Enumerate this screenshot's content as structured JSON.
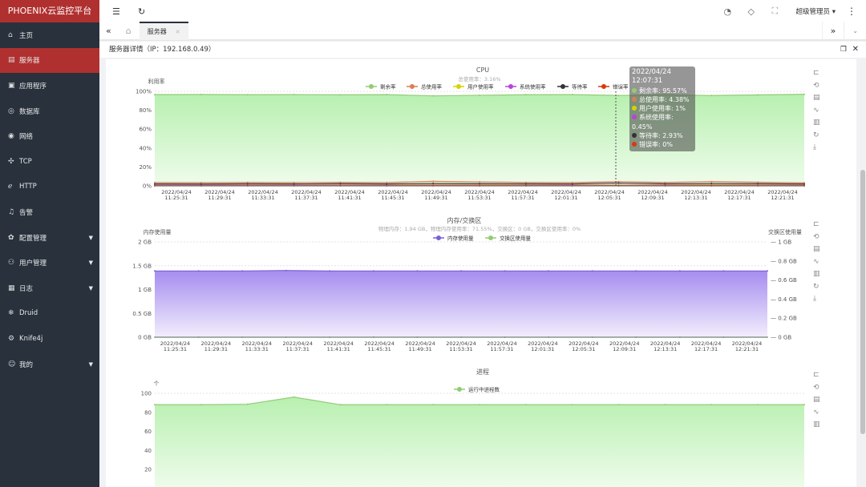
{
  "app": {
    "title": "PHOENIX云监控平台"
  },
  "sidebar": {
    "items": [
      {
        "label": "主页",
        "icon": "⌂"
      },
      {
        "label": "服务器",
        "icon": "▤",
        "active": true
      },
      {
        "label": "应用程序",
        "icon": "▣"
      },
      {
        "label": "数据库",
        "icon": "◎"
      },
      {
        "label": "网络",
        "icon": "◉"
      },
      {
        "label": "TCP",
        "icon": "✣"
      },
      {
        "label": "HTTP",
        "icon": "ℯ"
      },
      {
        "label": "告警",
        "icon": "♫"
      },
      {
        "label": "配置管理",
        "icon": "✿",
        "expand": true
      },
      {
        "label": "用户管理",
        "icon": "⚇",
        "expand": true
      },
      {
        "label": "日志",
        "icon": "▦",
        "expand": true
      },
      {
        "label": "Druid",
        "icon": "❄"
      },
      {
        "label": "Knife4j",
        "icon": "⚙"
      },
      {
        "label": "我的",
        "icon": "☺",
        "expand": true
      }
    ]
  },
  "topbar": {
    "user": "超级管理员"
  },
  "tabs": {
    "current": "服务器",
    "close": "×"
  },
  "subheader": {
    "title": "服务器详情（IP：192.168.0.49）"
  },
  "tooltip": {
    "time": "2022/04/24 12:07:31",
    "rows": [
      {
        "label": "剩余率: 95.57%",
        "color": "#91cc75"
      },
      {
        "label": "总使用率: 4.38%",
        "color": "#e07b54"
      },
      {
        "label": "用户使用率: 1%",
        "color": "#d4d400"
      },
      {
        "label": "系统使用率: 0.45%",
        "color": "#b845d8"
      },
      {
        "label": "等待率: 2.93%",
        "color": "#333333"
      },
      {
        "label": "错误率: 0%",
        "color": "#d83a0c"
      }
    ]
  },
  "toolbox": [
    "裁",
    "还",
    "数",
    "线",
    "柱",
    "刷",
    "存"
  ],
  "chart_data": [
    {
      "type": "area",
      "title": "CPU",
      "subtitle": "总使用率：3.16%",
      "ylabel": "利用率",
      "ylim": [
        0,
        100
      ],
      "yticks": [
        "0%",
        "20%",
        "40%",
        "60%",
        "80%",
        "100%"
      ],
      "x": [
        "11:25:31",
        "11:29:31",
        "11:33:31",
        "11:37:31",
        "11:41:31",
        "11:45:31",
        "11:49:31",
        "11:53:31",
        "11:57:31",
        "12:01:31",
        "12:05:31",
        "12:09:31",
        "12:13:31",
        "12:17:31",
        "12:21:31"
      ],
      "date": "2022/04/24",
      "series": [
        {
          "name": "剩余率",
          "color": "#91cc75",
          "values": [
            96.5,
            96.6,
            96.4,
            96.5,
            96.3,
            96.5,
            95.2,
            95.8,
            96.4,
            96.5,
            95.6,
            96.4,
            95.5,
            96.2,
            96.8
          ]
        },
        {
          "name": "总使用率",
          "color": "#e07b54",
          "values": [
            3.5,
            3.4,
            3.6,
            3.5,
            3.7,
            3.5,
            4.8,
            4.2,
            3.6,
            3.5,
            4.4,
            3.6,
            4.5,
            3.8,
            3.2
          ]
        },
        {
          "name": "用户使用率",
          "color": "#d4d400",
          "values": [
            1,
            1,
            1,
            1,
            1,
            1,
            1.5,
            1.3,
            1,
            1,
            1,
            1,
            1.4,
            1.1,
            0.9
          ]
        },
        {
          "name": "系统使用率",
          "color": "#b845d8",
          "values": [
            0.5,
            0.5,
            0.5,
            0.5,
            0.5,
            0.5,
            0.7,
            0.6,
            0.5,
            0.5,
            0.45,
            0.5,
            0.6,
            0.5,
            0.4
          ]
        },
        {
          "name": "等待率",
          "color": "#333333",
          "values": [
            2,
            1.9,
            2.1,
            2,
            2.2,
            2,
            2.6,
            2.3,
            2.1,
            2,
            2.93,
            2.1,
            2.5,
            2.2,
            1.9
          ]
        },
        {
          "name": "错误率",
          "color": "#d83a0c",
          "values": [
            0,
            0,
            0,
            0,
            0,
            0,
            0,
            0,
            0,
            0,
            0,
            0,
            0,
            0,
            0
          ]
        }
      ]
    },
    {
      "type": "area",
      "title": "内存/交换区",
      "subtitle": "物理内存：1.94 GB，物理内存使用率：71.55%，交换区：0 GB，交换区使用率：0%",
      "ylabel": "内存使用量",
      "y2label": "交换区使用量",
      "ylim": [
        0,
        2
      ],
      "yticks": [
        "0 GB",
        "0.5 GB",
        "1 GB",
        "1.5 GB",
        "2 GB"
      ],
      "y2ticks": [
        "0 GB",
        "0.2 GB",
        "0.4 GB",
        "0.6 GB",
        "0.8 GB",
        "1 GB"
      ],
      "series": [
        {
          "name": "内存使用量",
          "color": "#7b5fd6",
          "values": [
            1.39,
            1.39,
            1.39,
            1.4,
            1.39,
            1.39,
            1.39,
            1.39,
            1.39,
            1.39,
            1.39,
            1.39,
            1.39,
            1.39,
            1.39
          ]
        },
        {
          "name": "交换区使用量",
          "color": "#91cc75",
          "values": [
            0,
            0,
            0,
            0,
            0,
            0,
            0,
            0,
            0,
            0,
            0,
            0,
            0,
            0,
            0
          ]
        }
      ]
    },
    {
      "type": "area",
      "title": "进程",
      "ylabel": "个",
      "ylim": [
        0,
        100
      ],
      "yticks": [
        "20",
        "40",
        "60",
        "80",
        "100"
      ],
      "series": [
        {
          "name": "运行中进程数",
          "color": "#91cc75",
          "values": [
            88,
            88,
            88.5,
            96,
            88,
            88,
            88,
            88,
            88,
            88,
            88,
            88,
            88,
            88,
            88
          ]
        }
      ]
    }
  ]
}
